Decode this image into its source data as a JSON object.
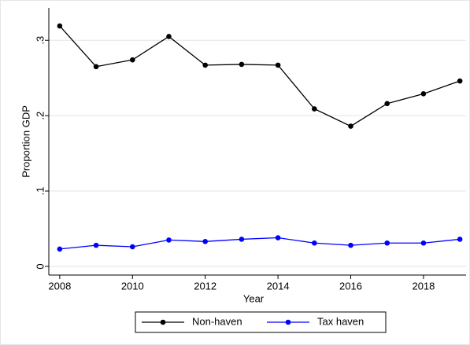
{
  "chart_data": {
    "type": "line",
    "x_label": "Year",
    "y_label": "Proportion GDP",
    "x": [
      2008,
      2009,
      2010,
      2011,
      2012,
      2013,
      2014,
      2015,
      2016,
      2017,
      2018,
      2019
    ],
    "series": [
      {
        "name": "Non-haven",
        "color": "#000000",
        "values": [
          0.319,
          0.265,
          0.274,
          0.305,
          0.267,
          0.268,
          0.267,
          0.209,
          0.186,
          0.216,
          0.229,
          0.246
        ]
      },
      {
        "name": "Tax haven",
        "color": "#0000ff",
        "values": [
          0.023,
          0.028,
          0.026,
          0.035,
          0.033,
          0.036,
          0.038,
          0.031,
          0.028,
          0.031,
          0.031,
          0.036
        ]
      }
    ],
    "xlim": [
      2007.7,
      2019.17
    ],
    "xticks": [
      2008,
      2010,
      2012,
      2014,
      2016,
      2018
    ],
    "ylim": [
      -0.0115,
      0.343
    ],
    "yticks": [
      0,
      {
        "value": 0.1,
        "label": ".1"
      },
      {
        "value": 0.2,
        "label": ".2"
      },
      {
        "value": 0.3,
        "label": ".3"
      }
    ],
    "grid": true,
    "legend": "bottom"
  }
}
